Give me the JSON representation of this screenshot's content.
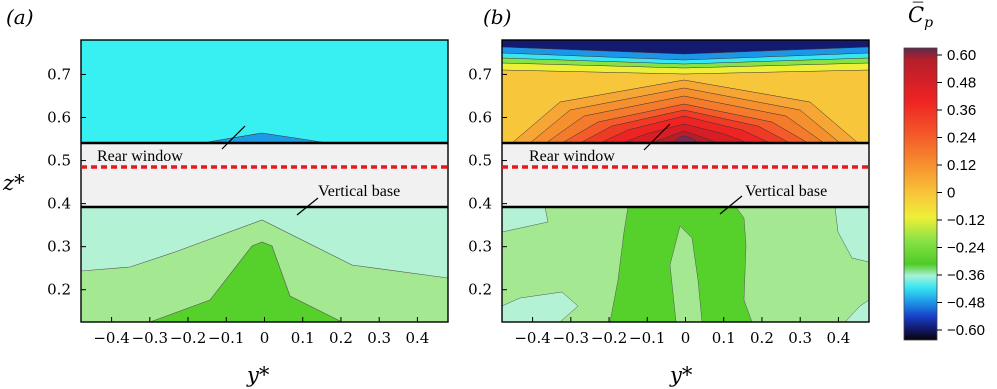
{
  "chart_data": {
    "type": "contour",
    "panels": [
      {
        "label": "(a)",
        "xlabel": "y*",
        "ylabel": "z*",
        "xlim": [
          -0.48,
          0.48
        ],
        "xticks": [
          -0.4,
          -0.3,
          -0.2,
          -0.1,
          0,
          0.1,
          0.2,
          0.3,
          0.4
        ],
        "xtick_labels": [
          "−0.4",
          "−0.3",
          "−0.2",
          "−0.1",
          "0",
          "0.1",
          "0.2",
          "0.3",
          "0.4"
        ],
        "yticks": [
          0.2,
          0.3,
          0.4,
          0.5,
          0.6,
          0.7
        ],
        "ytick_labels": [
          "0.2",
          "0.3",
          "0.4",
          "0.5",
          "0.6",
          "0.7"
        ],
        "annotations": [
          {
            "text": "Rear window",
            "z": 0.512
          },
          {
            "text": "Vertical base",
            "z": 0.418
          }
        ],
        "dashed_line_z": 0.488
      },
      {
        "label": "(b)",
        "xlabel": "y*",
        "xlim": [
          -0.48,
          0.48
        ],
        "xticks": [
          -0.4,
          -0.3,
          -0.2,
          -0.1,
          0,
          0.1,
          0.2,
          0.3,
          0.4
        ],
        "xtick_labels": [
          "−0.4",
          "−0.3",
          "−0.2",
          "−0.1",
          "0",
          "0.1",
          "0.2",
          "0.3",
          "0.4"
        ],
        "yticks": [
          0.2,
          0.3,
          0.4,
          0.5,
          0.6,
          0.7
        ],
        "ytick_labels": [
          "0.2",
          "0.3",
          "0.4",
          "0.5",
          "0.6",
          "0.7"
        ],
        "annotations": [
          {
            "text": "Rear window",
            "z": 0.512
          },
          {
            "text": "Vertical base",
            "z": 0.418
          }
        ],
        "dashed_line_z": 0.488
      }
    ],
    "colorbar": {
      "title": "C̅",
      "title_sub": "p",
      "range": [
        -0.6,
        0.6
      ],
      "tick_labels": [
        "0.60",
        "0.48",
        "0.36",
        "0.24",
        "0.12",
        "0",
        "−0.12",
        "−0.24",
        "−0.36",
        "−0.48",
        "−0.60"
      ]
    }
  }
}
